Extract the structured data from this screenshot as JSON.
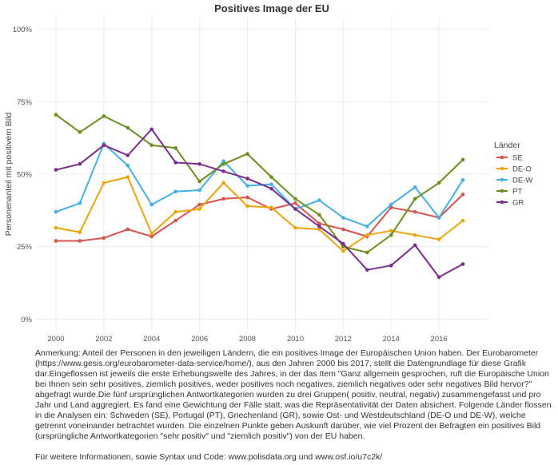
{
  "chart_data": {
    "type": "line",
    "title": "Positives Image der EU",
    "xlabel": "",
    "ylabel": "Personenanteil mit positivem Bild",
    "x": [
      2000,
      2001,
      2002,
      2003,
      2004,
      2005,
      2006,
      2007,
      2008,
      2009,
      2010,
      2011,
      2012,
      2013,
      2014,
      2015,
      2016,
      2017
    ],
    "xlim": [
      1999.2,
      2018.1
    ],
    "ylim": [
      -0.04,
      1.04
    ],
    "x_ticks": [
      2000,
      2002,
      2004,
      2006,
      2008,
      2010,
      2012,
      2014,
      2016
    ],
    "y_ticks": [
      0,
      0.25,
      0.5,
      0.75,
      1.0
    ],
    "y_tick_labels": [
      "0%",
      "25%",
      "50%",
      "75%",
      "100%"
    ],
    "grid": true,
    "legend_title": "Länder",
    "legend_position": "right",
    "series": [
      {
        "name": "SE",
        "color": "#d9534f",
        "values": [
          0.27,
          0.27,
          0.28,
          0.31,
          0.285,
          0.34,
          0.395,
          0.415,
          0.42,
          0.38,
          0.4,
          0.33,
          0.31,
          0.285,
          0.385,
          0.37,
          0.35,
          0.43
        ]
      },
      {
        "name": "DE-O",
        "color": "#f0a30a",
        "values": [
          0.315,
          0.3,
          0.47,
          0.49,
          0.295,
          0.37,
          0.38,
          0.47,
          0.39,
          0.385,
          0.315,
          0.31,
          0.235,
          0.29,
          0.305,
          0.29,
          0.275,
          0.34
        ]
      },
      {
        "name": "DE-W",
        "color": "#43b0e8",
        "values": [
          0.37,
          0.4,
          0.605,
          0.53,
          0.395,
          0.44,
          0.445,
          0.545,
          0.46,
          0.465,
          0.38,
          0.41,
          0.35,
          0.32,
          0.395,
          0.455,
          0.35,
          0.48
        ]
      },
      {
        "name": "PT",
        "color": "#6a8f1a",
        "values": [
          0.705,
          0.645,
          0.7,
          0.66,
          0.6,
          0.59,
          0.475,
          0.535,
          0.57,
          0.49,
          0.415,
          0.36,
          0.25,
          0.23,
          0.29,
          0.415,
          0.47,
          0.55
        ]
      },
      {
        "name": "GR",
        "color": "#7b2d8e",
        "values": [
          0.515,
          0.535,
          0.6,
          0.565,
          0.655,
          0.54,
          0.535,
          0.51,
          0.485,
          0.45,
          0.38,
          0.32,
          0.26,
          0.17,
          0.185,
          0.255,
          0.145,
          0.19
        ]
      }
    ]
  },
  "footnote": {
    "text": "Anmerkung: Anteil der Personen in den jeweiligen Ländern, die ein positives Image der Europäischen Union haben.  Der Eurobarometer (https://www.gesis.org/eurobarometer-data-service/home/), aus den Jahren 2000 bis 2017, stellt die Datengrundlage für diese Grafik dar.Eingeflossen ist jeweils die erste Erhebungswelle des Jahres, in der das Item \"Ganz allgemein gesprochen, ruft die Europäische Union bei Ihnen sein sehr positives, ziemlich positives, weder positives noch negatives, ziemlich negatives oder sehr negatives Bild hervor?\" abgefragt wurde.Die fünf ursprünglichen Antwortkategorien wurden zu drei Gruppen( positiv, neutral, negativ) zusammengefasst und pro Jahr und Land aggregiert. Es fand eine Gewichtung der Fälle statt, was die Repräsentativität der Daten absichert. Folgende Länder flossen in die Analysen ein: Schweden (SE), Portugal (PT), Griechenland (GR), sowie Ost- und Westdeutschland (DE-O und DE-W), welche getrennt voneinander betrachtet wurden. Die einzelnen Punkte geben Auskunft darüber, wie viel Prozent der Befragten ein positives Bild (ursprüngliche Antwortkategorien \"sehr positiv\" und \"ziemlich positiv\") von der EU haben.",
    "more_info": "Für weitere Informationen, sowie Syntax und Code: www.polisdata.org und www.osf.io/u7c2k/"
  }
}
